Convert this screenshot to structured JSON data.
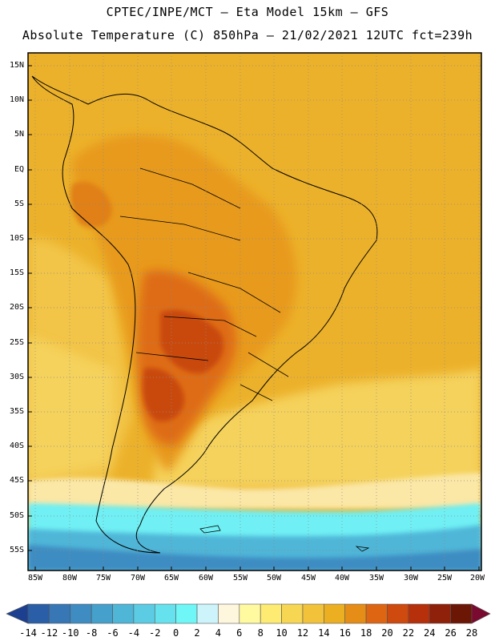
{
  "header": {
    "line1": "CPTEC/INPE/MCT –  Eta Model 15km – GFS",
    "line2": "Absolute Temperature (C) 850hPa – 21/02/2021 12UTC fct=239h"
  },
  "map": {
    "lat_labels": [
      "15N",
      "10N",
      "5N",
      "EQ",
      "5S",
      "10S",
      "15S",
      "20S",
      "25S",
      "30S",
      "35S",
      "40S",
      "45S",
      "50S",
      "55S"
    ],
    "lon_labels": [
      "85W",
      "80W",
      "75W",
      "70W",
      "65W",
      "60W",
      "55W",
      "50W",
      "45W",
      "40W",
      "35W",
      "30W",
      "25W",
      "20W"
    ]
  },
  "colorbar": {
    "labels": [
      "-14",
      "-12",
      "-10",
      "-8",
      "-6",
      "-4",
      "-2",
      "0",
      "2",
      "4",
      "6",
      "8",
      "10",
      "12",
      "14",
      "16",
      "18",
      "20",
      "22",
      "24",
      "26",
      "28"
    ],
    "colors": [
      "#1c3f8f",
      "#2a5ea6",
      "#3777b5",
      "#3e8cc2",
      "#45a0cc",
      "#4fb6d8",
      "#5bcce4",
      "#66e2ee",
      "#6ff7f7",
      "#cdf4fb",
      "#fff6de",
      "#fff9a0",
      "#fdeb72",
      "#f7d654",
      "#f2c23a",
      "#ecaf22",
      "#e58d16",
      "#de6612",
      "#ce4a0e",
      "#b5300b",
      "#8f2009",
      "#6c1606"
    ]
  }
}
